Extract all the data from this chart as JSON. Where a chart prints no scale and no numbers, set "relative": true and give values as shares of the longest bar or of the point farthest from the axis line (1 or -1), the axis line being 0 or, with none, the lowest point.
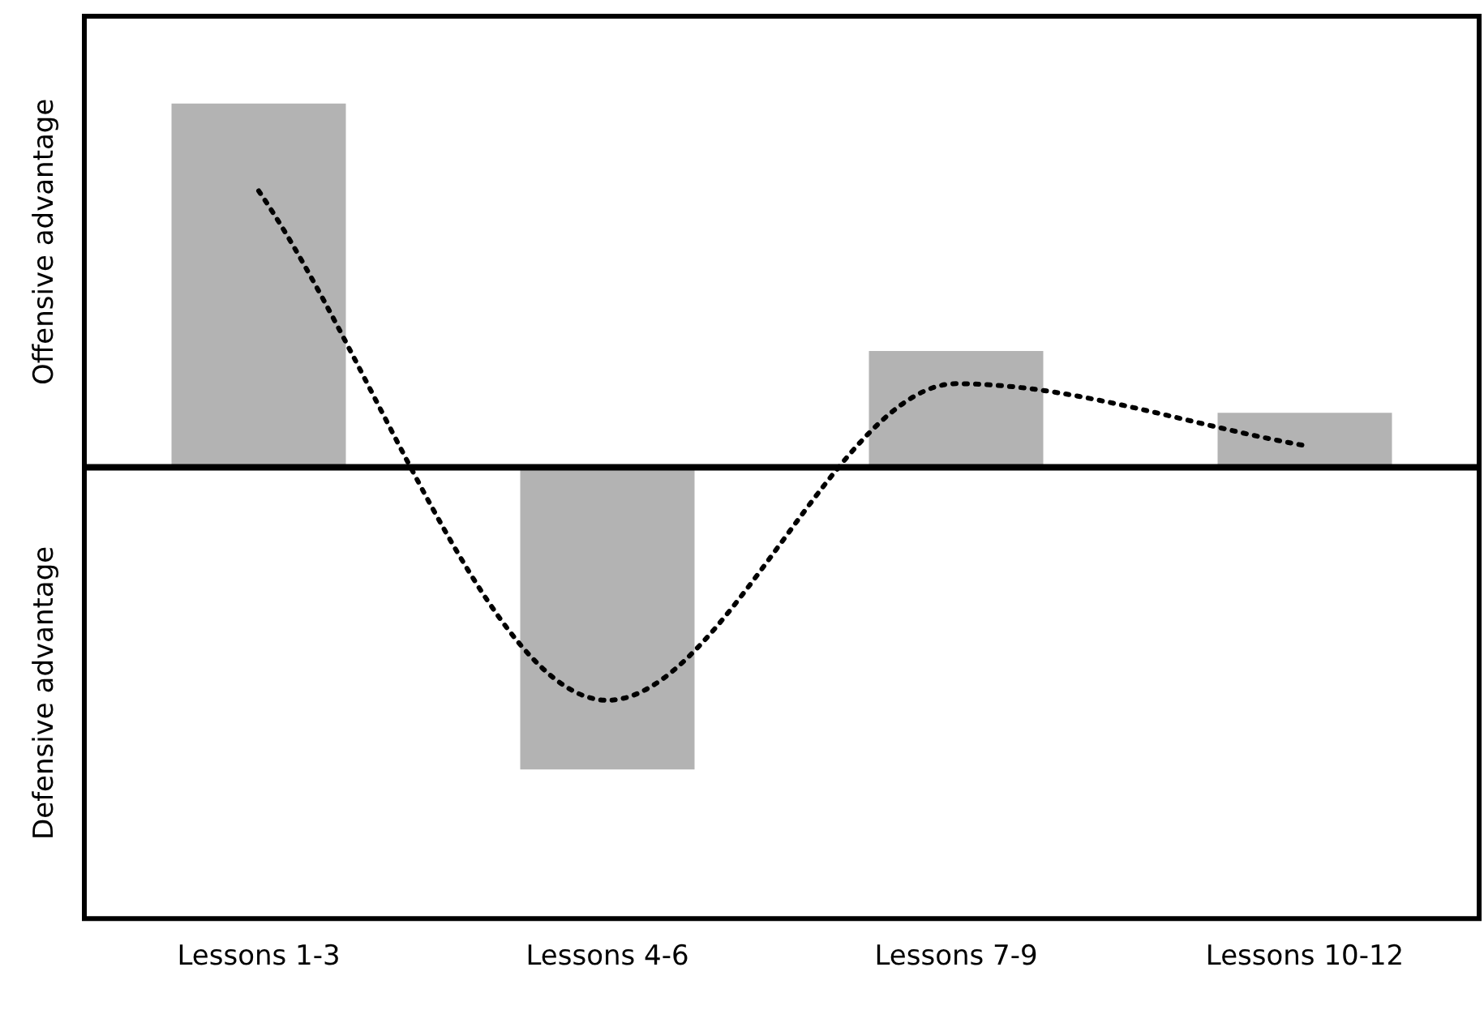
{
  "chart_data": {
    "type": "bar",
    "relative": true,
    "categories": [
      "Lessons 1-3",
      "Lessons 4-6",
      "Lessons 7-9",
      "Lessons 10-12"
    ],
    "series": [
      {
        "color": "#b3b3b3",
        "values": [
          1,
          -0.83,
          0.32,
          0.15
        ]
      },
      {
        "type": "line",
        "color": "#000000",
        "values": [
          0.76,
          -0.64,
          0.23,
          0.06
        ],
        "line_style": "dotted",
        "marker": "none"
      }
    ],
    "annotations": [
      "Offensive advantage",
      "Defensive advantage"
    ],
    "grid": false,
    "legend": false
  }
}
